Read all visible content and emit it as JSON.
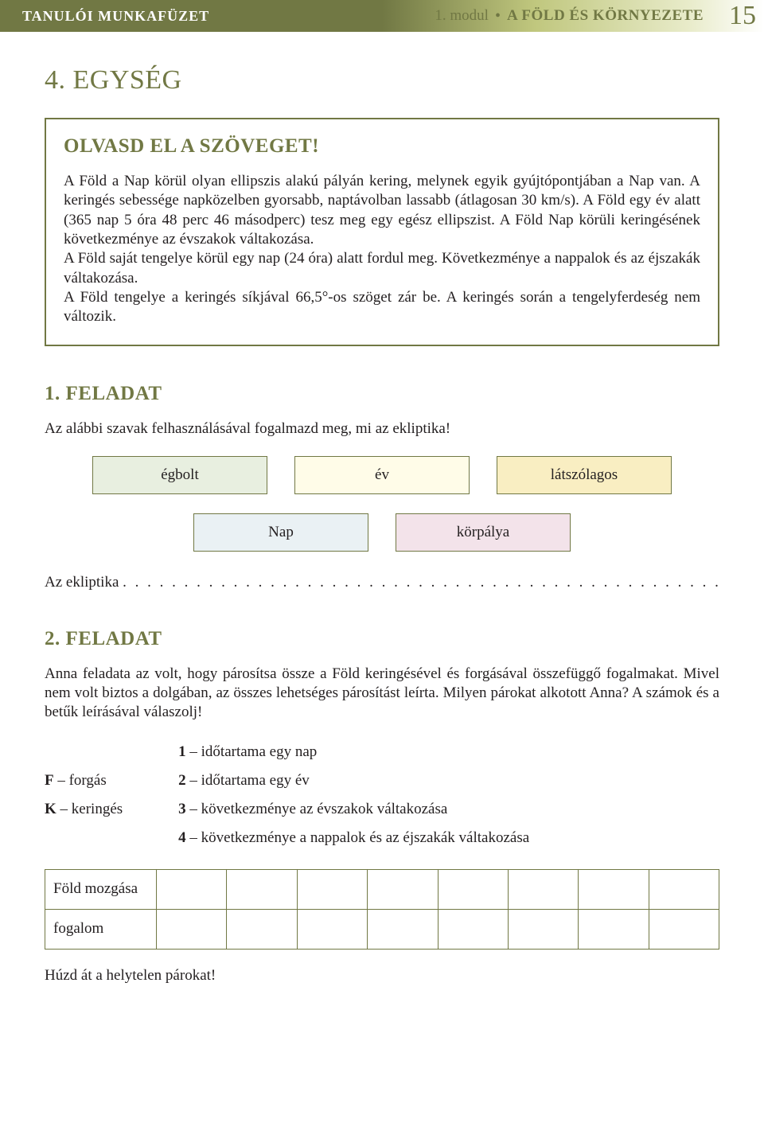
{
  "header": {
    "left": "TANULÓI MUNKAFÜZET",
    "module": "1. modul",
    "title": "A FÖLD ÉS KÖRNYEZETE",
    "page": "15"
  },
  "unit_title": "4. EGYSÉG",
  "read_box": {
    "heading": "OLVASD EL A SZÖVEGET!",
    "text": "A Föld a Nap körül olyan ellipszis alakú pályán kering, melynek egyik gyújtópontjában a Nap van. A keringés sebessége napközelben gyorsabb, naptávolban lassabb (átlagosan 30 km/s). A Föld egy év alatt (365 nap 5 óra 48 perc 46 másodperc) tesz meg egy egész ellipszist. A Föld Nap körüli keringésének következménye az évszakok váltakozása.\nA Föld saját tengelye körül egy nap (24 óra) alatt fordul meg. Következménye a nappalok és az éjszakák váltakozása.\nA Föld tengelye a keringés síkjával 66,5°-os szöget zár be. A keringés során a tengelyferdeség nem változik."
  },
  "task1": {
    "heading": "1. FELADAT",
    "instr": "Az alábbi szavak felhasználásával fogalmazd meg, mi az ekliptika!",
    "words": {
      "row1": [
        {
          "label": "égbolt",
          "bg": "#e8efe0"
        },
        {
          "label": "év",
          "bg": "#fffce8"
        },
        {
          "label": "látszólagos",
          "bg": "#f9eec2"
        }
      ],
      "row2": [
        {
          "label": "Nap",
          "bg": "#eaf1f4"
        },
        {
          "label": "körpálya",
          "bg": "#f3e3ea"
        }
      ]
    },
    "fill_label": "Az ekliptika"
  },
  "task2": {
    "heading": "2. FELADAT",
    "instr": "Anna feladata az volt, hogy párosítsa össze a Föld keringésével és forgásával összefüggő fogalmakat. Mivel nem volt biztos a dolgában, az összes lehetséges párosítást leírta. Milyen párokat alkotott Anna? A számok és a betűk leírásával válaszolj!",
    "left": [
      {
        "key": "F",
        "label": "forgás"
      },
      {
        "key": "K",
        "label": "keringés"
      }
    ],
    "right": [
      {
        "key": "1",
        "label": "időtartama egy nap"
      },
      {
        "key": "2",
        "label": "időtartama egy év"
      },
      {
        "key": "3",
        "label": "következménye az évszakok váltakozása"
      },
      {
        "key": "4",
        "label": "következménye a nappalok és az éjszakák váltakozása"
      }
    ],
    "table": {
      "rows": [
        "Föld mozgása",
        "fogalom"
      ],
      "blank_cols": 8
    },
    "final": "Húzd át a helytelen párokat!"
  }
}
